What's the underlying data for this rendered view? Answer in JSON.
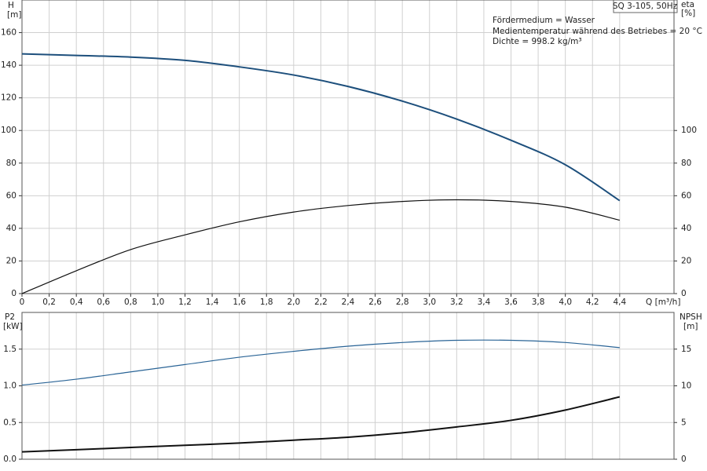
{
  "chart_data": [
    {
      "type": "line",
      "title": "SQ 3-105, 50Hz",
      "annotations": [
        "Fördermedium = Wasser",
        "Medientemperatur während des Betriebes = 20 °C",
        "Dichte = 998.2 kg/m³"
      ],
      "ylabel": "H",
      "yunit": "[m]",
      "y2label": "eta",
      "y2unit": "[%]",
      "xlabel": "Q [m³/h]",
      "x": [
        0,
        0.4,
        0.8,
        1.2,
        1.6,
        2.0,
        2.4,
        2.8,
        3.2,
        3.6,
        4.0,
        4.4
      ],
      "series": [
        {
          "name": "H",
          "color": "#1d4f7c",
          "values": [
            147,
            146,
            145,
            143,
            139,
            134,
            127,
            118,
            107,
            94,
            79,
            57
          ]
        },
        {
          "name": "eta",
          "color": "#111111",
          "axis": "y2",
          "values": [
            0,
            14,
            27,
            36,
            44,
            50,
            54,
            56.5,
            57.5,
            56.5,
            53,
            45
          ]
        }
      ],
      "xlim": [
        0,
        4.8
      ],
      "xticks": [
        0,
        {
          "value": 0.2,
          "label": "0,2"
        },
        {
          "value": 0.4,
          "label": "0,4"
        },
        {
          "value": 0.6,
          "label": "0,6"
        },
        {
          "value": 0.8,
          "label": "0,8"
        },
        {
          "value": 1.0,
          "label": "1,0"
        },
        {
          "value": 1.2,
          "label": "1,2"
        },
        {
          "value": 1.4,
          "label": "1,4"
        },
        {
          "value": 1.6,
          "label": "1,6"
        },
        {
          "value": 1.8,
          "label": "1,8"
        },
        {
          "value": 2.0,
          "label": "2,0"
        },
        {
          "value": 2.2,
          "label": "2,2"
        },
        {
          "value": 2.4,
          "label": "2,4"
        },
        {
          "value": 2.6,
          "label": "2,6"
        },
        {
          "value": 2.8,
          "label": "2,8"
        },
        {
          "value": 3.0,
          "label": "3,0"
        },
        {
          "value": 3.2,
          "label": "3,2"
        },
        {
          "value": 3.4,
          "label": "3,4"
        },
        {
          "value": 3.6,
          "label": "3,6"
        },
        {
          "value": 3.8,
          "label": "3,8"
        },
        {
          "value": 4.0,
          "label": "4,0"
        },
        {
          "value": 4.2,
          "label": "4,2"
        },
        {
          "value": 4.4,
          "label": "4,4"
        }
      ],
      "ylim": [
        0,
        180
      ],
      "yticks": [
        0,
        20,
        40,
        60,
        80,
        100,
        120,
        140,
        160
      ],
      "y2lim": [
        0,
        180
      ],
      "y2ticks": [
        0,
        20,
        40,
        60,
        80,
        100
      ],
      "grid": true
    },
    {
      "type": "line",
      "ylabel": "P2",
      "yunit": "[kW]",
      "y2label": "NPSH",
      "y2unit": "[m]",
      "x": [
        0,
        0.4,
        0.8,
        1.2,
        1.6,
        2.0,
        2.4,
        2.8,
        3.2,
        3.6,
        4.0,
        4.4
      ],
      "series": [
        {
          "name": "P2",
          "color": "#2a6496",
          "values": [
            1.01,
            1.09,
            1.19,
            1.29,
            1.39,
            1.47,
            1.54,
            1.59,
            1.62,
            1.62,
            1.59,
            1.52
          ]
        },
        {
          "name": "NPSH",
          "color": "#111111",
          "axis": "y2",
          "values": [
            1.0,
            1.3,
            1.6,
            1.9,
            2.2,
            2.6,
            3.0,
            3.6,
            4.4,
            5.3,
            6.7,
            8.5
          ]
        }
      ],
      "xlim": [
        0,
        4.8
      ],
      "ylim": [
        0,
        2.0
      ],
      "yticks": [
        {
          "value": 0,
          "label": "0.0"
        },
        0.5,
        {
          "value": 1,
          "label": "1.0"
        },
        1.5
      ],
      "y2lim": [
        0,
        20
      ],
      "y2ticks": [
        0,
        5,
        10,
        15
      ],
      "grid": true
    }
  ]
}
